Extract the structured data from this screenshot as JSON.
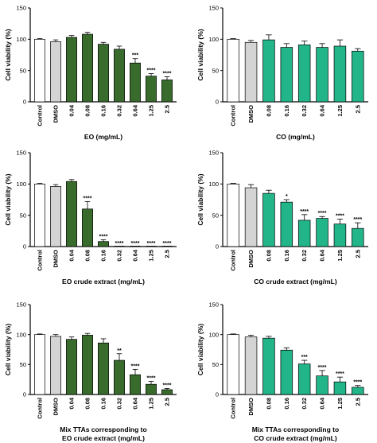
{
  "chart_data": [
    {
      "type": "bar",
      "title": "",
      "ylabel": "Cell viability (%)",
      "xlabel": [
        "EO (mg/mL)"
      ],
      "ylim": [
        0,
        150
      ],
      "yticks": [
        0,
        50,
        100,
        150
      ],
      "categories": [
        "Control",
        "DMSO",
        "0.04",
        "0.08",
        "0.16",
        "0.32",
        "0.64",
        "1.25",
        "2.5"
      ],
      "values": [
        100,
        96,
        103,
        108,
        92,
        84,
        62,
        41,
        35
      ],
      "errors": [
        1,
        3,
        3,
        3,
        3,
        5,
        7,
        4,
        5
      ],
      "significance": [
        "",
        "",
        "",
        "",
        "",
        "",
        "***",
        "****",
        "****"
      ],
      "bar_colors": [
        "#ffffff",
        "#d4d4d4",
        "#386b2c",
        "#386b2c",
        "#386b2c",
        "#386b2c",
        "#386b2c",
        "#386b2c",
        "#386b2c"
      ],
      "grid": false,
      "legend": "none"
    },
    {
      "type": "bar",
      "title": "",
      "ylabel": "Cell viability (%)",
      "xlabel": [
        "CO (mg/mL)"
      ],
      "ylim": [
        0,
        150
      ],
      "yticks": [
        0,
        50,
        100,
        150
      ],
      "categories": [
        "Control",
        "DMSO",
        "0.08",
        "0.16",
        "0.32",
        "0.64",
        "1.25",
        "2.5"
      ],
      "values": [
        100,
        95,
        99,
        87,
        91,
        87,
        89,
        81
      ],
      "errors": [
        1,
        3,
        8,
        6,
        6,
        6,
        10,
        4
      ],
      "significance": [
        "",
        "",
        "",
        "",
        "",
        "",
        "",
        ""
      ],
      "bar_colors": [
        "#ffffff",
        "#d4d4d4",
        "#22b589",
        "#22b589",
        "#22b589",
        "#22b589",
        "#22b589",
        "#22b589"
      ],
      "grid": false,
      "legend": "none"
    },
    {
      "type": "bar",
      "title": "",
      "ylabel": "Cell viability (%)",
      "xlabel": [
        "EO crude extract (mg/mL)"
      ],
      "ylim": [
        0,
        150
      ],
      "yticks": [
        0,
        50,
        100,
        150
      ],
      "categories": [
        "Control",
        "DMSO",
        "0.04",
        "0.08",
        "0.16",
        "0.32",
        "0.64",
        "1.25",
        "2.5"
      ],
      "values": [
        100,
        96,
        104,
        60,
        8,
        0,
        0,
        0,
        0
      ],
      "errors": [
        1,
        3,
        3,
        12,
        3,
        0,
        0,
        0,
        0
      ],
      "significance": [
        "",
        "",
        "",
        "****",
        "****",
        "****",
        "****",
        "****",
        "****"
      ],
      "bar_colors": [
        "#ffffff",
        "#d4d4d4",
        "#386b2c",
        "#386b2c",
        "#386b2c",
        "#386b2c",
        "#386b2c",
        "#386b2c",
        "#386b2c"
      ],
      "grid": false,
      "legend": "none"
    },
    {
      "type": "bar",
      "title": "",
      "ylabel": "Cell viability (%)",
      "xlabel": [
        "CO crude extract (mg/mL)"
      ],
      "ylim": [
        0,
        150
      ],
      "yticks": [
        0,
        50,
        100,
        150
      ],
      "categories": [
        "Control",
        "DMSO",
        "0.08",
        "0.16",
        "0.32",
        "0.64",
        "1.25",
        "2.5"
      ],
      "values": [
        100,
        94,
        85,
        71,
        42,
        45,
        36,
        29
      ],
      "errors": [
        1,
        5,
        5,
        4,
        9,
        3,
        8,
        9
      ],
      "significance": [
        "",
        "",
        "",
        "*",
        "****",
        "****",
        "****",
        "****"
      ],
      "bar_colors": [
        "#ffffff",
        "#d4d4d4",
        "#22b589",
        "#22b589",
        "#22b589",
        "#22b589",
        "#22b589",
        "#22b589"
      ],
      "grid": false,
      "legend": "none"
    },
    {
      "type": "bar",
      "title": "",
      "ylabel": "Cell viability (%)",
      "xlabel": [
        "Mix TTAs corresponding to",
        "EO crude extract (mg/mL)"
      ],
      "ylim": [
        0,
        150
      ],
      "yticks": [
        0,
        50,
        100,
        150
      ],
      "categories": [
        "Control",
        "DMSO",
        "0.04",
        "0.08",
        "0.16",
        "0.32",
        "0.64",
        "1.25",
        "2.5"
      ],
      "values": [
        100,
        97,
        92,
        99,
        86,
        57,
        33,
        17,
        8
      ],
      "errors": [
        1,
        3,
        4,
        3,
        7,
        11,
        9,
        5,
        2
      ],
      "significance": [
        "",
        "",
        "",
        "",
        "",
        "**",
        "****",
        "****",
        "****"
      ],
      "bar_colors": [
        "#ffffff",
        "#d4d4d4",
        "#386b2c",
        "#386b2c",
        "#386b2c",
        "#386b2c",
        "#386b2c",
        "#386b2c",
        "#386b2c"
      ],
      "grid": false,
      "legend": "none"
    },
    {
      "type": "bar",
      "title": "",
      "ylabel": "Cell viability (%)",
      "xlabel": [
        "Mix TTAs corresponding to",
        "CO crude extract (mg/mL)"
      ],
      "ylim": [
        0,
        150
      ],
      "yticks": [
        0,
        50,
        100,
        150
      ],
      "categories": [
        "Control",
        "DMSO",
        "0.08",
        "0.16",
        "0.32",
        "0.64",
        "1.25",
        "2.5"
      ],
      "values": [
        100,
        96,
        94,
        74,
        51,
        31,
        21,
        12
      ],
      "errors": [
        1,
        3,
        3,
        4,
        6,
        9,
        8,
        3
      ],
      "significance": [
        "",
        "",
        "",
        "",
        "***",
        "****",
        "****",
        "****"
      ],
      "bar_colors": [
        "#ffffff",
        "#d4d4d4",
        "#22b589",
        "#22b589",
        "#22b589",
        "#22b589",
        "#22b589",
        "#22b589"
      ],
      "grid": false,
      "legend": "none"
    }
  ]
}
